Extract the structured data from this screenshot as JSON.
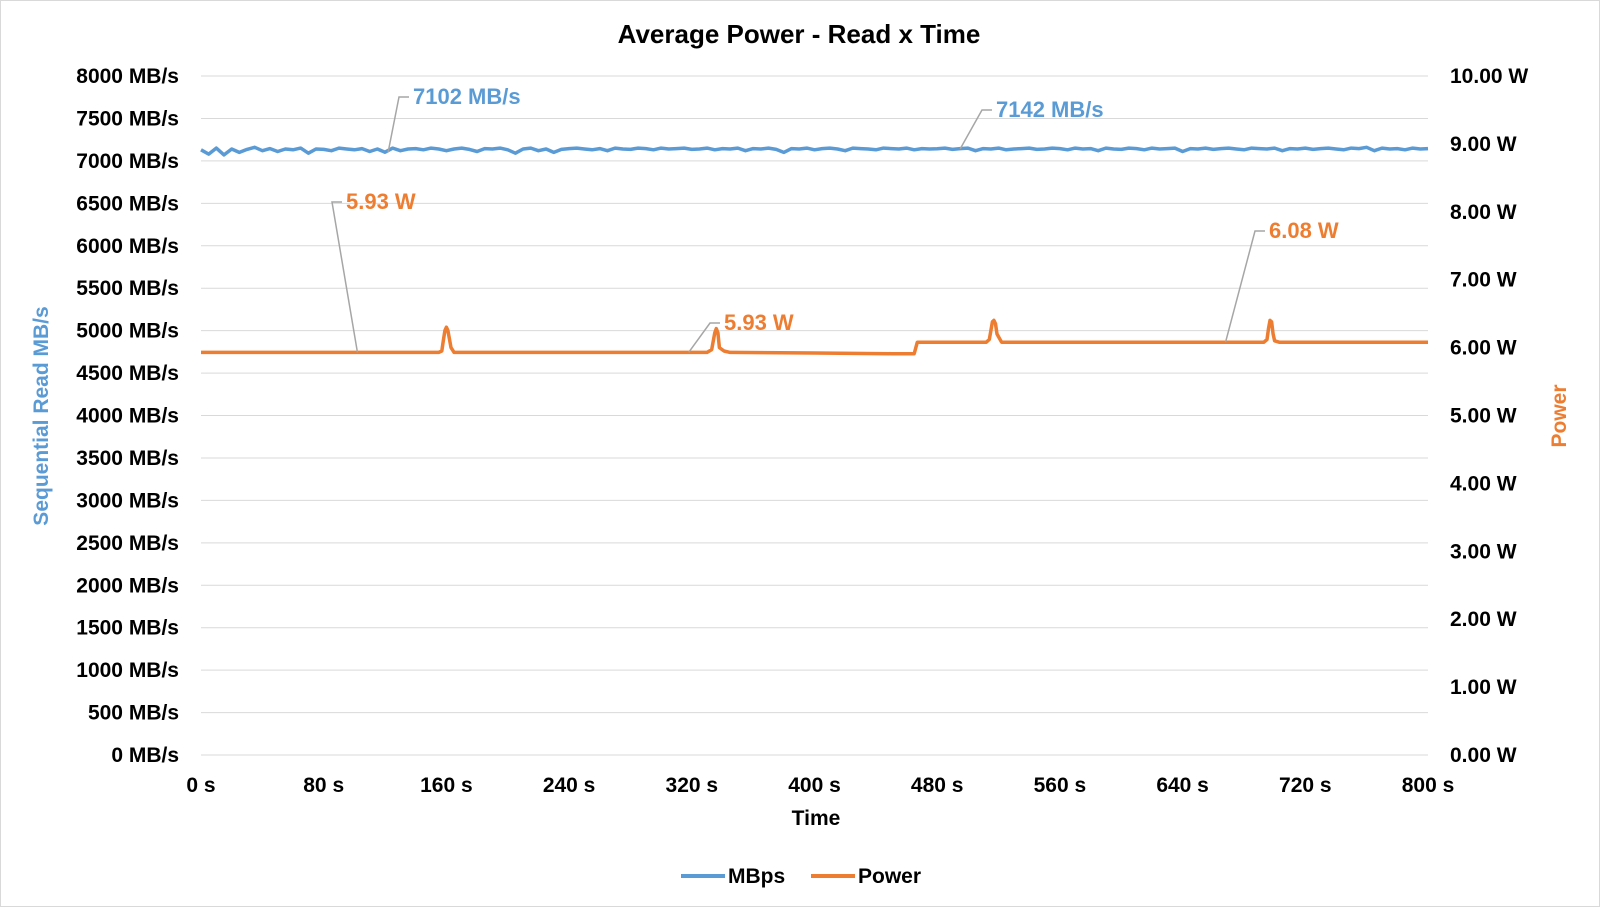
{
  "chart_data": {
    "type": "line",
    "title": "Average Power - Read x Time",
    "xlabel": "Time",
    "ylabel_left": "Sequential Read MB/s",
    "ylabel_right": "Power",
    "x_ticks": [
      "0 s",
      "80 s",
      "160 s",
      "240 s",
      "320 s",
      "400 s",
      "480 s",
      "560 s",
      "640 s",
      "720 s",
      "800 s"
    ],
    "y_left_ticks": [
      "0 MB/s",
      "500 MB/s",
      "1000 MB/s",
      "1500 MB/s",
      "2000 MB/s",
      "2500 MB/s",
      "3000 MB/s",
      "3500 MB/s",
      "4000 MB/s",
      "4500 MB/s",
      "5000 MB/s",
      "5500 MB/s",
      "6000 MB/s",
      "6500 MB/s",
      "7000 MB/s",
      "7500 MB/s",
      "8000 MB/s"
    ],
    "y_right_ticks": [
      "0.00 W",
      "1.00 W",
      "2.00 W",
      "3.00 W",
      "4.00 W",
      "5.00 W",
      "6.00 W",
      "7.00 W",
      "8.00 W",
      "9.00 W",
      "10.00 W"
    ],
    "xlim": [
      0,
      800
    ],
    "ylim_left": [
      0,
      8000
    ],
    "ylim_right": [
      0,
      10
    ],
    "grid": true,
    "legend": "bottom",
    "series": [
      {
        "name": "MBps",
        "axis": "left",
        "color": "#5b9bd5",
        "x": [
          0,
          5,
          10,
          15,
          20,
          25,
          30,
          35,
          40,
          45,
          50,
          55,
          60,
          65,
          70,
          75,
          80,
          85,
          90,
          95,
          100,
          105,
          110,
          115,
          120,
          125,
          130,
          135,
          140,
          145,
          150,
          155,
          160,
          165,
          170,
          175,
          180,
          185,
          190,
          195,
          200,
          205,
          210,
          215,
          220,
          225,
          230,
          235,
          240,
          245,
          250,
          255,
          260,
          265,
          270,
          275,
          280,
          285,
          290,
          295,
          300,
          305,
          310,
          315,
          320,
          325,
          330,
          335,
          340,
          345,
          350,
          355,
          360,
          365,
          370,
          375,
          380,
          385,
          390,
          395,
          400,
          405,
          410,
          415,
          420,
          425,
          430,
          435,
          440,
          445,
          450,
          455,
          460,
          465,
          470,
          475,
          480,
          485,
          490,
          495,
          500,
          505,
          510,
          515,
          520,
          525,
          530,
          535,
          540,
          545,
          550,
          555,
          560,
          565,
          570,
          575,
          580,
          585,
          590,
          595,
          600,
          605,
          610,
          615,
          620,
          625,
          630,
          635,
          640,
          645,
          650,
          655,
          660,
          665,
          670,
          675,
          680,
          685,
          690,
          695,
          700,
          705,
          710,
          715,
          720,
          725,
          730,
          735,
          740,
          745,
          750,
          755,
          760,
          765,
          770,
          775,
          780,
          785,
          790,
          795,
          800
        ],
        "values": [
          7130,
          7080,
          7150,
          7070,
          7140,
          7100,
          7135,
          7160,
          7120,
          7145,
          7110,
          7140,
          7130,
          7150,
          7090,
          7140,
          7135,
          7120,
          7150,
          7140,
          7130,
          7145,
          7110,
          7140,
          7102,
          7150,
          7120,
          7140,
          7145,
          7130,
          7150,
          7140,
          7120,
          7140,
          7150,
          7135,
          7110,
          7145,
          7140,
          7150,
          7130,
          7090,
          7140,
          7150,
          7120,
          7140,
          7100,
          7135,
          7145,
          7150,
          7140,
          7130,
          7145,
          7120,
          7150,
          7140,
          7135,
          7150,
          7145,
          7130,
          7150,
          7140,
          7145,
          7150,
          7135,
          7140,
          7150,
          7130,
          7145,
          7140,
          7150,
          7120,
          7145,
          7140,
          7150,
          7135,
          7100,
          7145,
          7140,
          7150,
          7130,
          7145,
          7150,
          7140,
          7120,
          7150,
          7145,
          7140,
          7130,
          7150,
          7145,
          7140,
          7150,
          7130,
          7145,
          7140,
          7142,
          7150,
          7135,
          7145,
          7150,
          7120,
          7145,
          7140,
          7150,
          7130,
          7140,
          7145,
          7150,
          7135,
          7140,
          7150,
          7145,
          7130,
          7150,
          7140,
          7145,
          7120,
          7150,
          7140,
          7135,
          7150,
          7145,
          7130,
          7150,
          7140,
          7145,
          7150,
          7110,
          7145,
          7140,
          7150,
          7135,
          7145,
          7150,
          7140,
          7130,
          7150,
          7145,
          7140,
          7150,
          7120,
          7145,
          7140,
          7150,
          7135,
          7145,
          7150,
          7140,
          7130,
          7150,
          7145,
          7160,
          7120,
          7150,
          7140,
          7145,
          7130,
          7150,
          7140,
          7145
        ]
      },
      {
        "name": "Power",
        "axis": "right",
        "color": "#ed7d31",
        "x": [
          0,
          100,
          155,
          157,
          158,
          159,
          160,
          161,
          163,
          165,
          200,
          250,
          300,
          330,
          333,
          334,
          335,
          336,
          337,
          338,
          341,
          345,
          400,
          450,
          465,
          467,
          500,
          512,
          514,
          515,
          516,
          517,
          518,
          519,
          522,
          526,
          600,
          665,
          693,
          695,
          696,
          697,
          698,
          699,
          700,
          703,
          707,
          750,
          800
        ],
        "values": [
          5.93,
          5.93,
          5.93,
          5.95,
          6.1,
          6.25,
          6.3,
          6.25,
          6.0,
          5.93,
          5.93,
          5.93,
          5.93,
          5.93,
          5.97,
          6.1,
          6.22,
          6.28,
          6.22,
          6.0,
          5.95,
          5.93,
          5.92,
          5.91,
          5.91,
          6.08,
          6.08,
          6.08,
          6.12,
          6.25,
          6.38,
          6.4,
          6.35,
          6.2,
          6.08,
          6.08,
          6.08,
          6.08,
          6.08,
          6.12,
          6.28,
          6.4,
          6.38,
          6.2,
          6.1,
          6.08,
          6.08,
          6.08,
          6.08
        ]
      }
    ],
    "annotations": [
      {
        "text": "7102 MB/s",
        "series": "MBps",
        "x": 122,
        "y": 7102
      },
      {
        "text": "7142 MB/s",
        "series": "MBps",
        "x": 495,
        "y": 7142
      },
      {
        "text": "5.93 W",
        "series": "Power",
        "x": 102,
        "y": 5.93
      },
      {
        "text": "5.93 W",
        "series": "Power",
        "x": 318,
        "y": 5.93
      },
      {
        "text": "6.08 W",
        "series": "Power",
        "x": 668,
        "y": 6.08
      }
    ]
  }
}
